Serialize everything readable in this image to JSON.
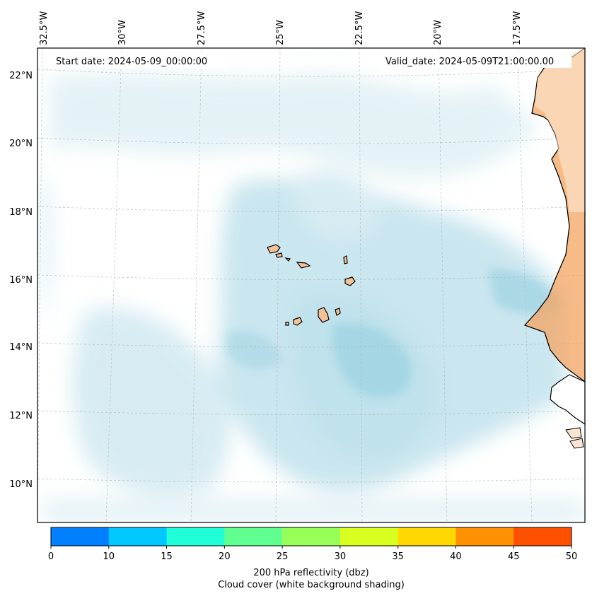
{
  "map": {
    "start_label": "Start date: 2024-05-09_00:00:00",
    "valid_label": "Valid_date: 2024-05-09T21:00:00.00",
    "lon_labels": [
      "32.5°W",
      "30°W",
      "27.5°W",
      "25°W",
      "22.5°W",
      "20°W",
      "17.5°W"
    ],
    "lat_labels": [
      "22°N",
      "20°N",
      "18°N",
      "16°N",
      "14°N",
      "12°N",
      "10°N"
    ],
    "land_color": "#f4a460",
    "cloud_color": "#add8e6"
  },
  "colorbar": {
    "ticks": [
      "0",
      "10",
      "15",
      "20",
      "25",
      "30",
      "35",
      "40",
      "45",
      "50"
    ],
    "colors": [
      "#0080ff",
      "#00c8ff",
      "#20ffd8",
      "#60ff90",
      "#98ff58",
      "#d8ff20",
      "#ffd800",
      "#ff9000",
      "#ff5000"
    ],
    "label_line1": "200 hPa reflectivity (dbz)",
    "label_line2": "Cloud cover (white background shading)"
  }
}
